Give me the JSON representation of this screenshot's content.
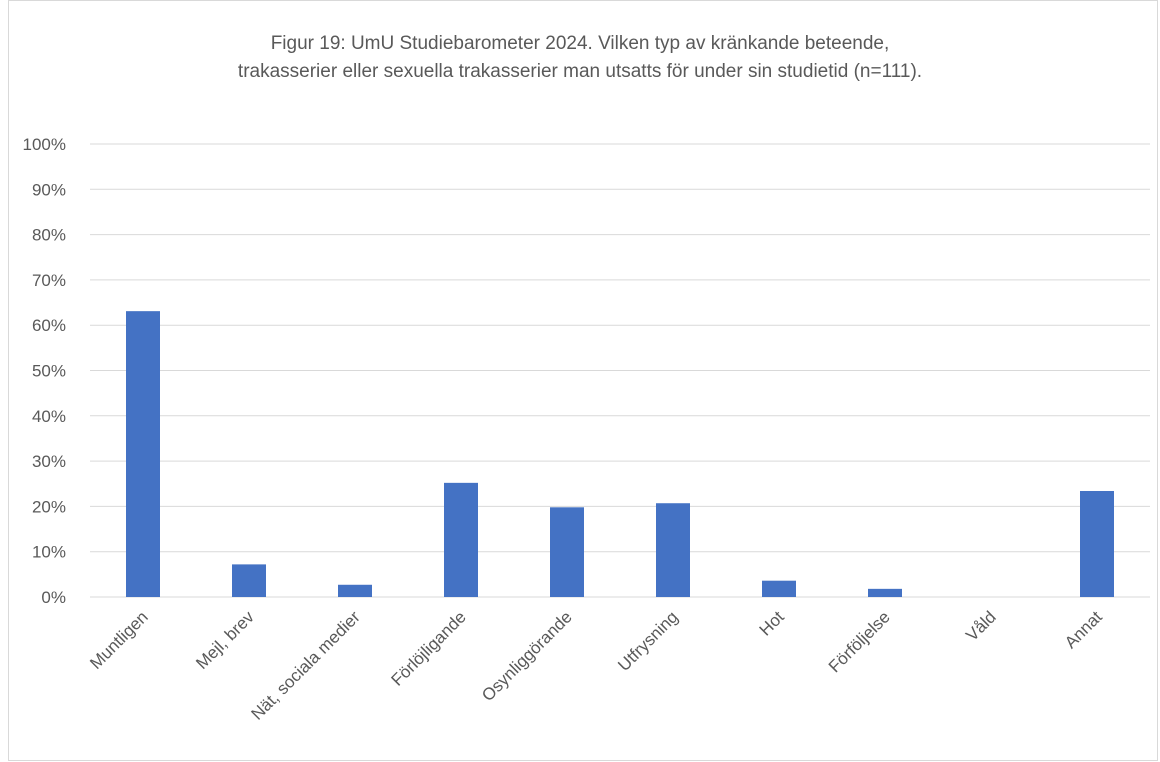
{
  "chart_data": {
    "type": "bar",
    "title_lines": [
      "Figur 19: UmU Studiebarometer 2024. Vilken typ av kränkande beteende,",
      "trakasserier eller sexuella trakasserier man utsatts för under sin studietid (n=111)."
    ],
    "categories": [
      "Muntligen",
      "Mejl, brev",
      "Nät, sociala medier",
      "Förlöjligande",
      "Osynliggörande",
      "Utfrysning",
      "Hot",
      "Förföljelse",
      "Våld",
      "Annat"
    ],
    "values": [
      63.1,
      7.2,
      2.7,
      25.2,
      19.8,
      20.7,
      3.6,
      1.8,
      0,
      23.4
    ],
    "y_ticks": [
      "0%",
      "10%",
      "20%",
      "30%",
      "40%",
      "50%",
      "60%",
      "70%",
      "80%",
      "90%",
      "100%"
    ],
    "ylim": [
      0,
      100
    ],
    "xlabel": "",
    "ylabel": "",
    "grid": true,
    "legend": "none",
    "bar_color": "#4472c4",
    "grid_color": "#d9d9d9"
  }
}
